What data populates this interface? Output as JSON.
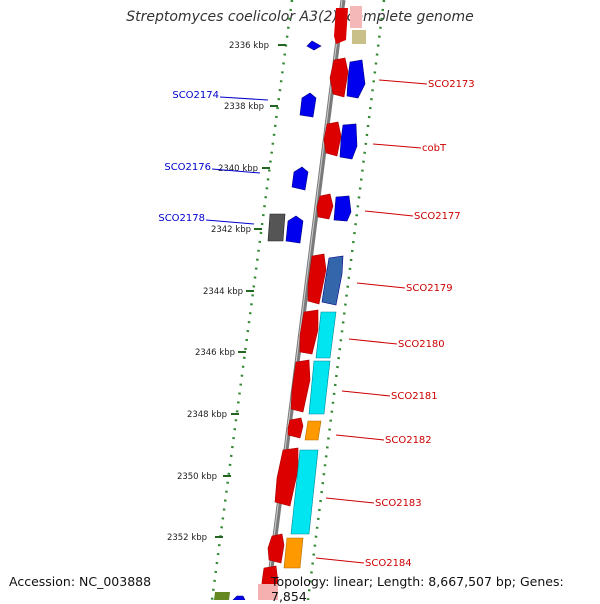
{
  "title": "Streptomyces coelicolor A3(2), complete genome",
  "footer": {
    "accession": "Accession: NC_003888",
    "summary": "Topology: linear; Length: 8,667,507 bp; Genes: 7,854"
  },
  "colors": {
    "backbone": "#777777",
    "forward_strand": "#dd0000",
    "reverse_strand": "#0000ee",
    "tick": "#338833",
    "label_forward": "#cc0000",
    "label_reverse": "#0000cc"
  },
  "ticks": [
    "2336 kbp",
    "2338 kbp",
    "2340 kbp",
    "2342 kbp",
    "2344 kbp",
    "2346 kbp",
    "2348 kbp",
    "2350 kbp",
    "2352 kbp"
  ],
  "genes_right": [
    {
      "label": "SCO2173"
    },
    {
      "label": "cobT"
    },
    {
      "label": "SCO2177"
    },
    {
      "label": "SCO2179"
    },
    {
      "label": "SCO2180"
    },
    {
      "label": "SCO2181"
    },
    {
      "label": "SCO2182"
    },
    {
      "label": "SCO2183"
    },
    {
      "label": "SCO2184"
    }
  ],
  "genes_left": [
    {
      "label": "SCO2174"
    },
    {
      "label": "SCO2176"
    },
    {
      "label": "SCO2178"
    }
  ]
}
